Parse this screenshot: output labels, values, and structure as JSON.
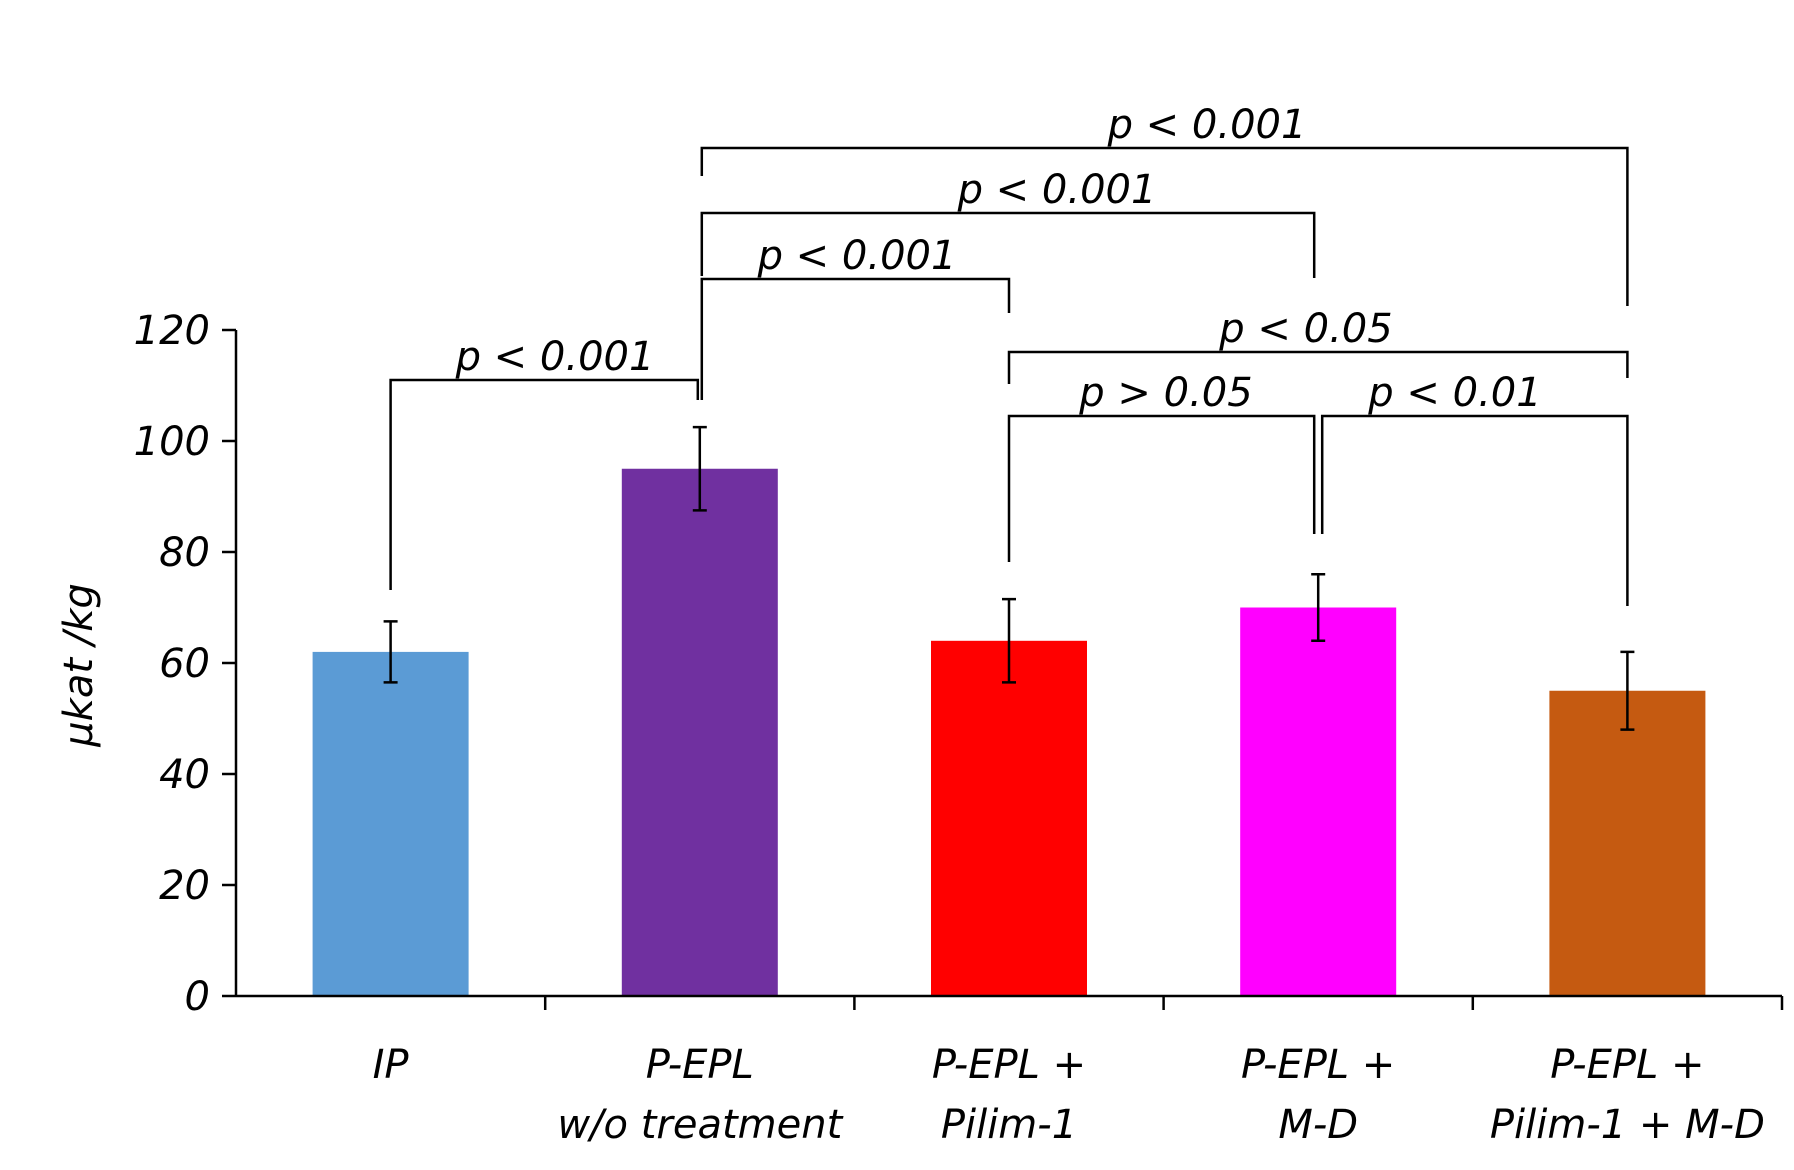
{
  "chart_data": {
    "type": "bar",
    "ylabel": "μkat /kg",
    "ylim": [
      0,
      120
    ],
    "yticks": [
      0,
      20,
      40,
      60,
      80,
      100,
      120
    ],
    "grid": false,
    "categories": [
      {
        "lines": [
          "IP"
        ],
        "value": 62,
        "error": 5.5,
        "color": "#5B9BD5"
      },
      {
        "lines": [
          "P-EPL",
          "w/o treatment"
        ],
        "value": 95,
        "error": 7.5,
        "color": "#7030A0"
      },
      {
        "lines": [
          "P-EPL +",
          "Pilim-1"
        ],
        "value": 64,
        "error": 7.5,
        "color": "#FF0000"
      },
      {
        "lines": [
          "P-EPL +",
          "M-D"
        ],
        "value": 70,
        "error": 6,
        "color": "#FF00FF"
      },
      {
        "lines": [
          "P-EPL +",
          "Pilim-1 + M-D"
        ],
        "value": 55,
        "error": 7,
        "color": "#C55A11"
      }
    ],
    "comparisons": [
      {
        "from": 0,
        "to": 1,
        "label": "p < 0.001"
      },
      {
        "from": 1,
        "to": 2,
        "label": "p < 0.001"
      },
      {
        "from": 1,
        "to": 3,
        "label": "p < 0.001"
      },
      {
        "from": 1,
        "to": 4,
        "label": "p < 0.001"
      },
      {
        "from": 2,
        "to": 3,
        "label": "p > 0.05"
      },
      {
        "from": 3,
        "to": 4,
        "label": "p < 0.01"
      },
      {
        "from": 2,
        "to": 4,
        "label": "p < 0.05"
      }
    ]
  }
}
